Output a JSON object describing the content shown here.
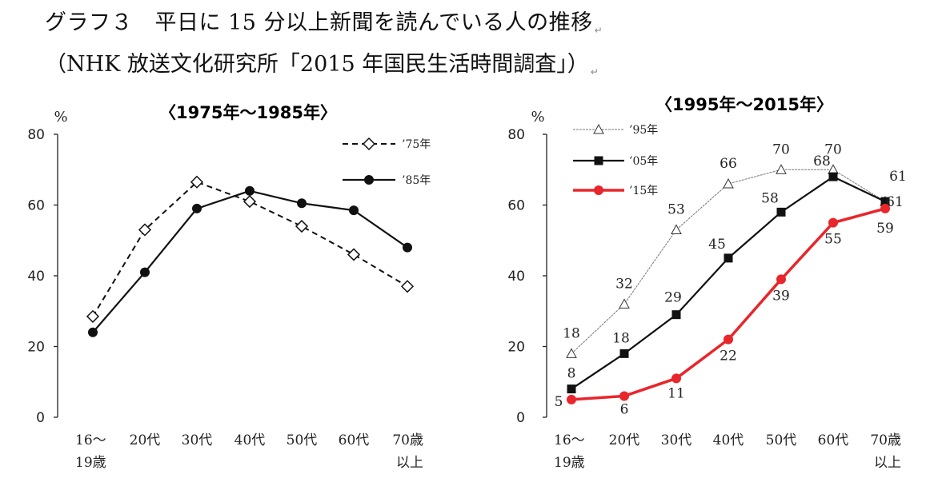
{
  "page": {
    "title": "グラフ３　平日に 15 分以上新聞を読んでいる人の推移",
    "subtitle": "（NHK 放送文化研究所「2015 年国民生活時間調査」）",
    "paragraph_mark": "↵"
  },
  "chart_data": [
    {
      "type": "line",
      "title": "〈1975年～1985年〉",
      "ylabel": "%",
      "ylim": [
        0,
        80
      ],
      "yticks": [
        "0",
        "20",
        "40",
        "60",
        "80"
      ],
      "categories": [
        [
          "16～",
          "19歳"
        ],
        [
          "20代"
        ],
        [
          "30代"
        ],
        [
          "40代"
        ],
        [
          "50代"
        ],
        [
          "60代"
        ],
        [
          "70歳",
          "以上"
        ]
      ],
      "legend_position": "top-right",
      "grid": false,
      "series": [
        {
          "name": "’75年",
          "values": [
            28.5,
            53,
            66.5,
            61,
            54,
            46,
            37
          ],
          "line": "dashed",
          "marker": "diamond-open",
          "color": "#111111",
          "labels": []
        },
        {
          "name": "’85年",
          "values": [
            24,
            41,
            59,
            64,
            60.5,
            58.5,
            48
          ],
          "line": "solid",
          "marker": "circle-filled",
          "color": "#111111",
          "labels": []
        }
      ]
    },
    {
      "type": "line",
      "title": "〈1995年～2015年〉",
      "ylabel": "%",
      "ylim": [
        0,
        80
      ],
      "yticks": [
        "0",
        "20",
        "40",
        "60",
        "80"
      ],
      "categories": [
        [
          "16～",
          "19歳"
        ],
        [
          "20代"
        ],
        [
          "30代"
        ],
        [
          "40代"
        ],
        [
          "50代"
        ],
        [
          "60代"
        ],
        [
          "70歳",
          "以上"
        ]
      ],
      "legend_position": "top-left",
      "grid": false,
      "series": [
        {
          "name": "’95年",
          "values": [
            18,
            32,
            53,
            66,
            70,
            70,
            61
          ],
          "line": "thin",
          "marker": "triangle-open",
          "color": "#777777",
          "labels": [
            "18",
            "32",
            "53",
            "66",
            "70",
            "70",
            "61"
          ]
        },
        {
          "name": "’05年",
          "values": [
            8,
            18,
            29,
            45,
            58,
            68,
            61
          ],
          "line": "solid",
          "marker": "square-filled",
          "color": "#111111",
          "labels": [
            "8",
            "18",
            "29",
            "45",
            "58",
            "68",
            "61"
          ]
        },
        {
          "name": "’15年",
          "values": [
            5,
            6,
            11,
            22,
            39,
            55,
            59
          ],
          "line": "thick",
          "marker": "circle-filled",
          "color": "#e8262b",
          "labels": [
            "5",
            "6",
            "11",
            "22",
            "39",
            "55",
            "59"
          ]
        }
      ]
    }
  ]
}
